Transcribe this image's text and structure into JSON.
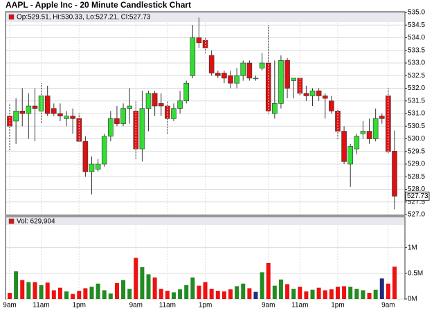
{
  "chart_data": [
    {
      "type": "candlestick",
      "title": "AAPL - Apple Inc - 20 Minute Candlestick Chart",
      "info": "Op:529.51, Hi:530.33, Lo:527.21, Cl:527.73",
      "open": [
        530.9,
        530.7,
        531.1,
        531.0,
        531.3,
        531.1,
        531.7,
        531.2,
        531.0,
        530.8,
        530.9,
        530.8,
        529.9,
        528.7,
        528.8,
        529.0,
        530.1,
        530.8,
        530.6,
        531.2,
        531.1,
        529.6,
        531.2,
        531.8,
        531.4,
        531.3,
        530.8,
        531.2,
        531.5,
        532.5,
        534.0,
        533.9,
        533.3,
        532.6,
        532.6,
        532.5,
        532.2,
        532.5,
        533.0,
        532.4,
        532.8,
        533.0,
        531.0,
        531.4,
        533.1,
        532.3,
        532.4,
        531.8,
        531.7,
        531.9,
        531.7,
        531.5,
        531.1,
        530.3,
        529.0,
        529.6,
        530.2,
        530.3,
        530.0,
        530.9,
        531.7,
        529.51
      ],
      "high": [
        531.4,
        531.6,
        532.0,
        531.8,
        532.0,
        532.2,
        532.1,
        531.4,
        531.4,
        531.1,
        531.2,
        531.0,
        530.1,
        529.3,
        529.2,
        530.2,
        531.1,
        531.3,
        531.4,
        532.0,
        531.5,
        531.9,
        531.9,
        531.9,
        531.8,
        531.5,
        531.4,
        531.9,
        532.3,
        534.5,
        534.8,
        534.0,
        533.5,
        532.7,
        532.7,
        532.7,
        532.8,
        533.1,
        533.1,
        532.5,
        533.4,
        534.5,
        533.1,
        533.3,
        533.2,
        532.4,
        532.4,
        532.1,
        532.0,
        532.0,
        531.8,
        531.7,
        531.2,
        530.5,
        529.8,
        530.2,
        530.7,
        530.8,
        531.2,
        531.0,
        532.0,
        530.33
      ],
      "low": [
        529.5,
        529.8,
        530.5,
        530.0,
        529.9,
        530.6,
        530.9,
        530.9,
        530.7,
        530.5,
        530.2,
        529.9,
        528.5,
        527.8,
        528.7,
        528.9,
        529.9,
        530.5,
        530.5,
        530.6,
        529.2,
        529.1,
        530.3,
        530.9,
        530.9,
        530.2,
        530.7,
        531.0,
        531.4,
        532.4,
        533.6,
        533.4,
        532.5,
        532.4,
        532.2,
        532.0,
        532.0,
        532.3,
        532.3,
        532.3,
        532.7,
        531.0,
        530.8,
        531.2,
        531.6,
        531.6,
        531.7,
        531.5,
        531.3,
        531.5,
        530.8,
        531.0,
        530.0,
        529.0,
        528.1,
        529.4,
        530.0,
        529.8,
        529.9,
        530.6,
        529.4,
        527.21
      ],
      "close": [
        530.5,
        531.1,
        531.0,
        531.3,
        531.2,
        531.7,
        531.0,
        531.0,
        530.9,
        530.9,
        530.8,
        529.9,
        528.7,
        529.0,
        529.0,
        530.1,
        530.8,
        530.6,
        531.2,
        531.3,
        529.6,
        531.2,
        531.8,
        531.3,
        531.3,
        530.8,
        531.2,
        531.5,
        532.2,
        534.0,
        533.8,
        533.6,
        532.6,
        532.5,
        532.4,
        532.2,
        532.5,
        533.0,
        532.4,
        532.4,
        533.0,
        531.1,
        531.4,
        533.1,
        532.0,
        532.4,
        531.8,
        531.7,
        531.9,
        531.7,
        531.6,
        531.1,
        530.3,
        529.1,
        529.7,
        530.1,
        530.3,
        530.0,
        530.8,
        530.8,
        529.5,
        527.73
      ],
      "up_color": "#33dd33",
      "down_color": "#dd1111",
      "ylim": [
        527,
        535
      ],
      "yticks": [
        {
          "value": 527,
          "label": "527.0"
        },
        527.5,
        {
          "value": 528,
          "label": "528.0"
        },
        528.5,
        {
          "value": 529,
          "label": "529.0"
        },
        529.5,
        {
          "value": 530,
          "label": "530.0"
        },
        530.5,
        {
          "value": 531,
          "label": "531.0"
        },
        531.5,
        {
          "value": 532,
          "label": "532.0"
        },
        532.5,
        {
          "value": 533,
          "label": "533.0"
        },
        533.5,
        {
          "value": 534,
          "label": "534.0"
        },
        534.5,
        {
          "value": 535,
          "label": "535.0"
        }
      ],
      "grid": true
    },
    {
      "type": "bar",
      "label": "Vol: 629,904",
      "categories": [
        "9am",
        null,
        null,
        null,
        null,
        "11am",
        null,
        null,
        null,
        null,
        null,
        "1pm",
        null,
        null,
        null,
        null,
        null,
        null,
        null,
        null,
        "9am",
        null,
        null,
        null,
        null,
        "11am",
        null,
        null,
        null,
        null,
        null,
        "1pm",
        null,
        null,
        null,
        null,
        null,
        null,
        null,
        null,
        null,
        "9am",
        null,
        null,
        null,
        null,
        "11am",
        null,
        null,
        null,
        null,
        null,
        "1pm",
        null,
        null,
        null,
        null,
        null,
        null,
        null,
        "9am",
        null
      ],
      "values": [
        120000,
        540000,
        370000,
        330000,
        330000,
        270000,
        320000,
        170000,
        220000,
        150000,
        100000,
        160000,
        210000,
        240000,
        300000,
        170000,
        110000,
        310000,
        370000,
        200000,
        800000,
        620000,
        480000,
        420000,
        200000,
        160000,
        130000,
        190000,
        270000,
        420000,
        260000,
        330000,
        200000,
        160000,
        150000,
        190000,
        250000,
        300000,
        210000,
        140000,
        520000,
        700000,
        260000,
        380000,
        290000,
        200000,
        240000,
        150000,
        180000,
        220000,
        170000,
        190000,
        240000,
        250000,
        240000,
        200000,
        170000,
        120000,
        180000,
        400000,
        300000,
        629904
      ],
      "colors": [
        "#ee1111",
        "#228b22",
        "#ee1111",
        "#228b22",
        "#ee1111",
        "#228b22",
        "#ee1111",
        "#ee1111",
        "#ee1111",
        "#228b22",
        "#ee1111",
        "#ee1111",
        "#ee1111",
        "#228b22",
        "#228b22",
        "#228b22",
        "#228b22",
        "#ee1111",
        "#228b22",
        "#228b22",
        "#ee1111",
        "#228b22",
        "#228b22",
        "#ee1111",
        "#ee1111",
        "#ee1111",
        "#228b22",
        "#228b22",
        "#228b22",
        "#228b22",
        "#ee1111",
        "#ee1111",
        "#ee1111",
        "#ee1111",
        "#ee1111",
        "#ee1111",
        "#228b22",
        "#228b22",
        "#ee1111",
        "#1f2f7f",
        "#228b22",
        "#ee1111",
        "#228b22",
        "#228b22",
        "#ee1111",
        "#228b22",
        "#ee1111",
        "#ee1111",
        "#228b22",
        "#ee1111",
        "#ee1111",
        "#ee1111",
        "#ee1111",
        "#ee1111",
        "#228b22",
        "#228b22",
        "#228b22",
        "#ee1111",
        "#228b22",
        "#1f2f7f",
        "#ee1111",
        "#ee1111"
      ],
      "ylim": [
        0,
        1600000
      ],
      "yticks": [
        {
          "value": 0,
          "label": "0M"
        },
        {
          "value": 500000,
          "label": "0.5M"
        },
        {
          "value": 1000000,
          "label": "1M"
        }
      ]
    }
  ]
}
